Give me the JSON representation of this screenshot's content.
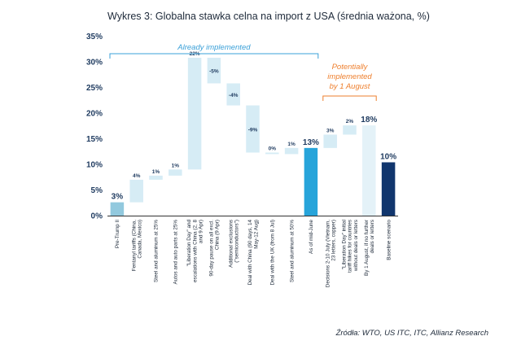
{
  "chart_data": {
    "type": "bar",
    "subtype": "waterfall",
    "title": "Wykres 3: Globalna stawka celna na import z USA (średnia ważona, %)",
    "ylim": [
      0,
      35
    ],
    "yticks": [
      "0%",
      "5%",
      "10%",
      "15%",
      "20%",
      "25%",
      "30%",
      "35%"
    ],
    "categories": [
      "Pre-Trump II",
      "Fentanyl tariffs (China, Canada, Mexico)",
      "Steel and aluminum at 25%",
      "Autos and auto parts at 25%",
      "\"Liberation Day\" and escalations with China (2, 8 and 9 Apr)",
      "90-day pause on all excl. China (9 Apr)",
      "Additional exclusions (\"semiconductors\")",
      "Deal with China (90 days, 14 May-12 Aug)",
      "Deal with the UK (from 8 Jul)",
      "Steel and aluminum at 50%",
      "As of mid-June",
      "Decisions 2-10 July (Vietnam, 23 letters, copper)",
      "\"Liberation Day\" initial tariff hikes for countries without deals or letters",
      "By 1 August, if no further deals or letters",
      "Baseline scenario"
    ],
    "bars": [
      {
        "start": 0,
        "end": 2.6,
        "kind": "total-light",
        "label": "3%"
      },
      {
        "start": 2.6,
        "end": 7.0,
        "kind": "step",
        "label": "4%"
      },
      {
        "start": 7.0,
        "end": 7.8,
        "kind": "step",
        "label": "1%"
      },
      {
        "start": 7.8,
        "end": 9.0,
        "kind": "step",
        "label": "1%"
      },
      {
        "start": 9.0,
        "end": 30.8,
        "kind": "step",
        "label": "22%"
      },
      {
        "start": 30.8,
        "end": 25.8,
        "kind": "step",
        "label": "-5%"
      },
      {
        "start": 25.8,
        "end": 21.5,
        "kind": "step",
        "label": "-4%"
      },
      {
        "start": 21.5,
        "end": 12.3,
        "kind": "step",
        "label": "-9%"
      },
      {
        "start": 12.3,
        "end": 12.0,
        "kind": "step",
        "label": "0%"
      },
      {
        "start": 12.0,
        "end": 13.2,
        "kind": "step",
        "label": "1%"
      },
      {
        "start": 0,
        "end": 13.2,
        "kind": "total-mid",
        "label": "13%"
      },
      {
        "start": 13.2,
        "end": 15.8,
        "kind": "step",
        "label": "3%"
      },
      {
        "start": 15.8,
        "end": 17.6,
        "kind": "step",
        "label": "2%"
      },
      {
        "start": 0,
        "end": 17.6,
        "kind": "total-pale",
        "label": "18%"
      },
      {
        "start": 0,
        "end": 10.4,
        "kind": "total-dark",
        "label": "10%"
      }
    ],
    "groups": [
      {
        "label": "Already implemented",
        "from": 0,
        "to": 10,
        "color": "#3aa0d8"
      },
      {
        "label_lines": [
          "Potentially",
          "implemented",
          "by 1 August"
        ],
        "from": 11,
        "to": 13,
        "color": "#ee7f2d"
      }
    ],
    "source": "Źródła: WTO, US ITC, ITC, Allianz Research",
    "colors": {
      "step": "#d6ecf5",
      "total-light": "#92c9de",
      "total-mid": "#27a4da",
      "total-pale": "#e4f2f8",
      "total-dark": "#11366d",
      "axis": "#333333"
    }
  }
}
